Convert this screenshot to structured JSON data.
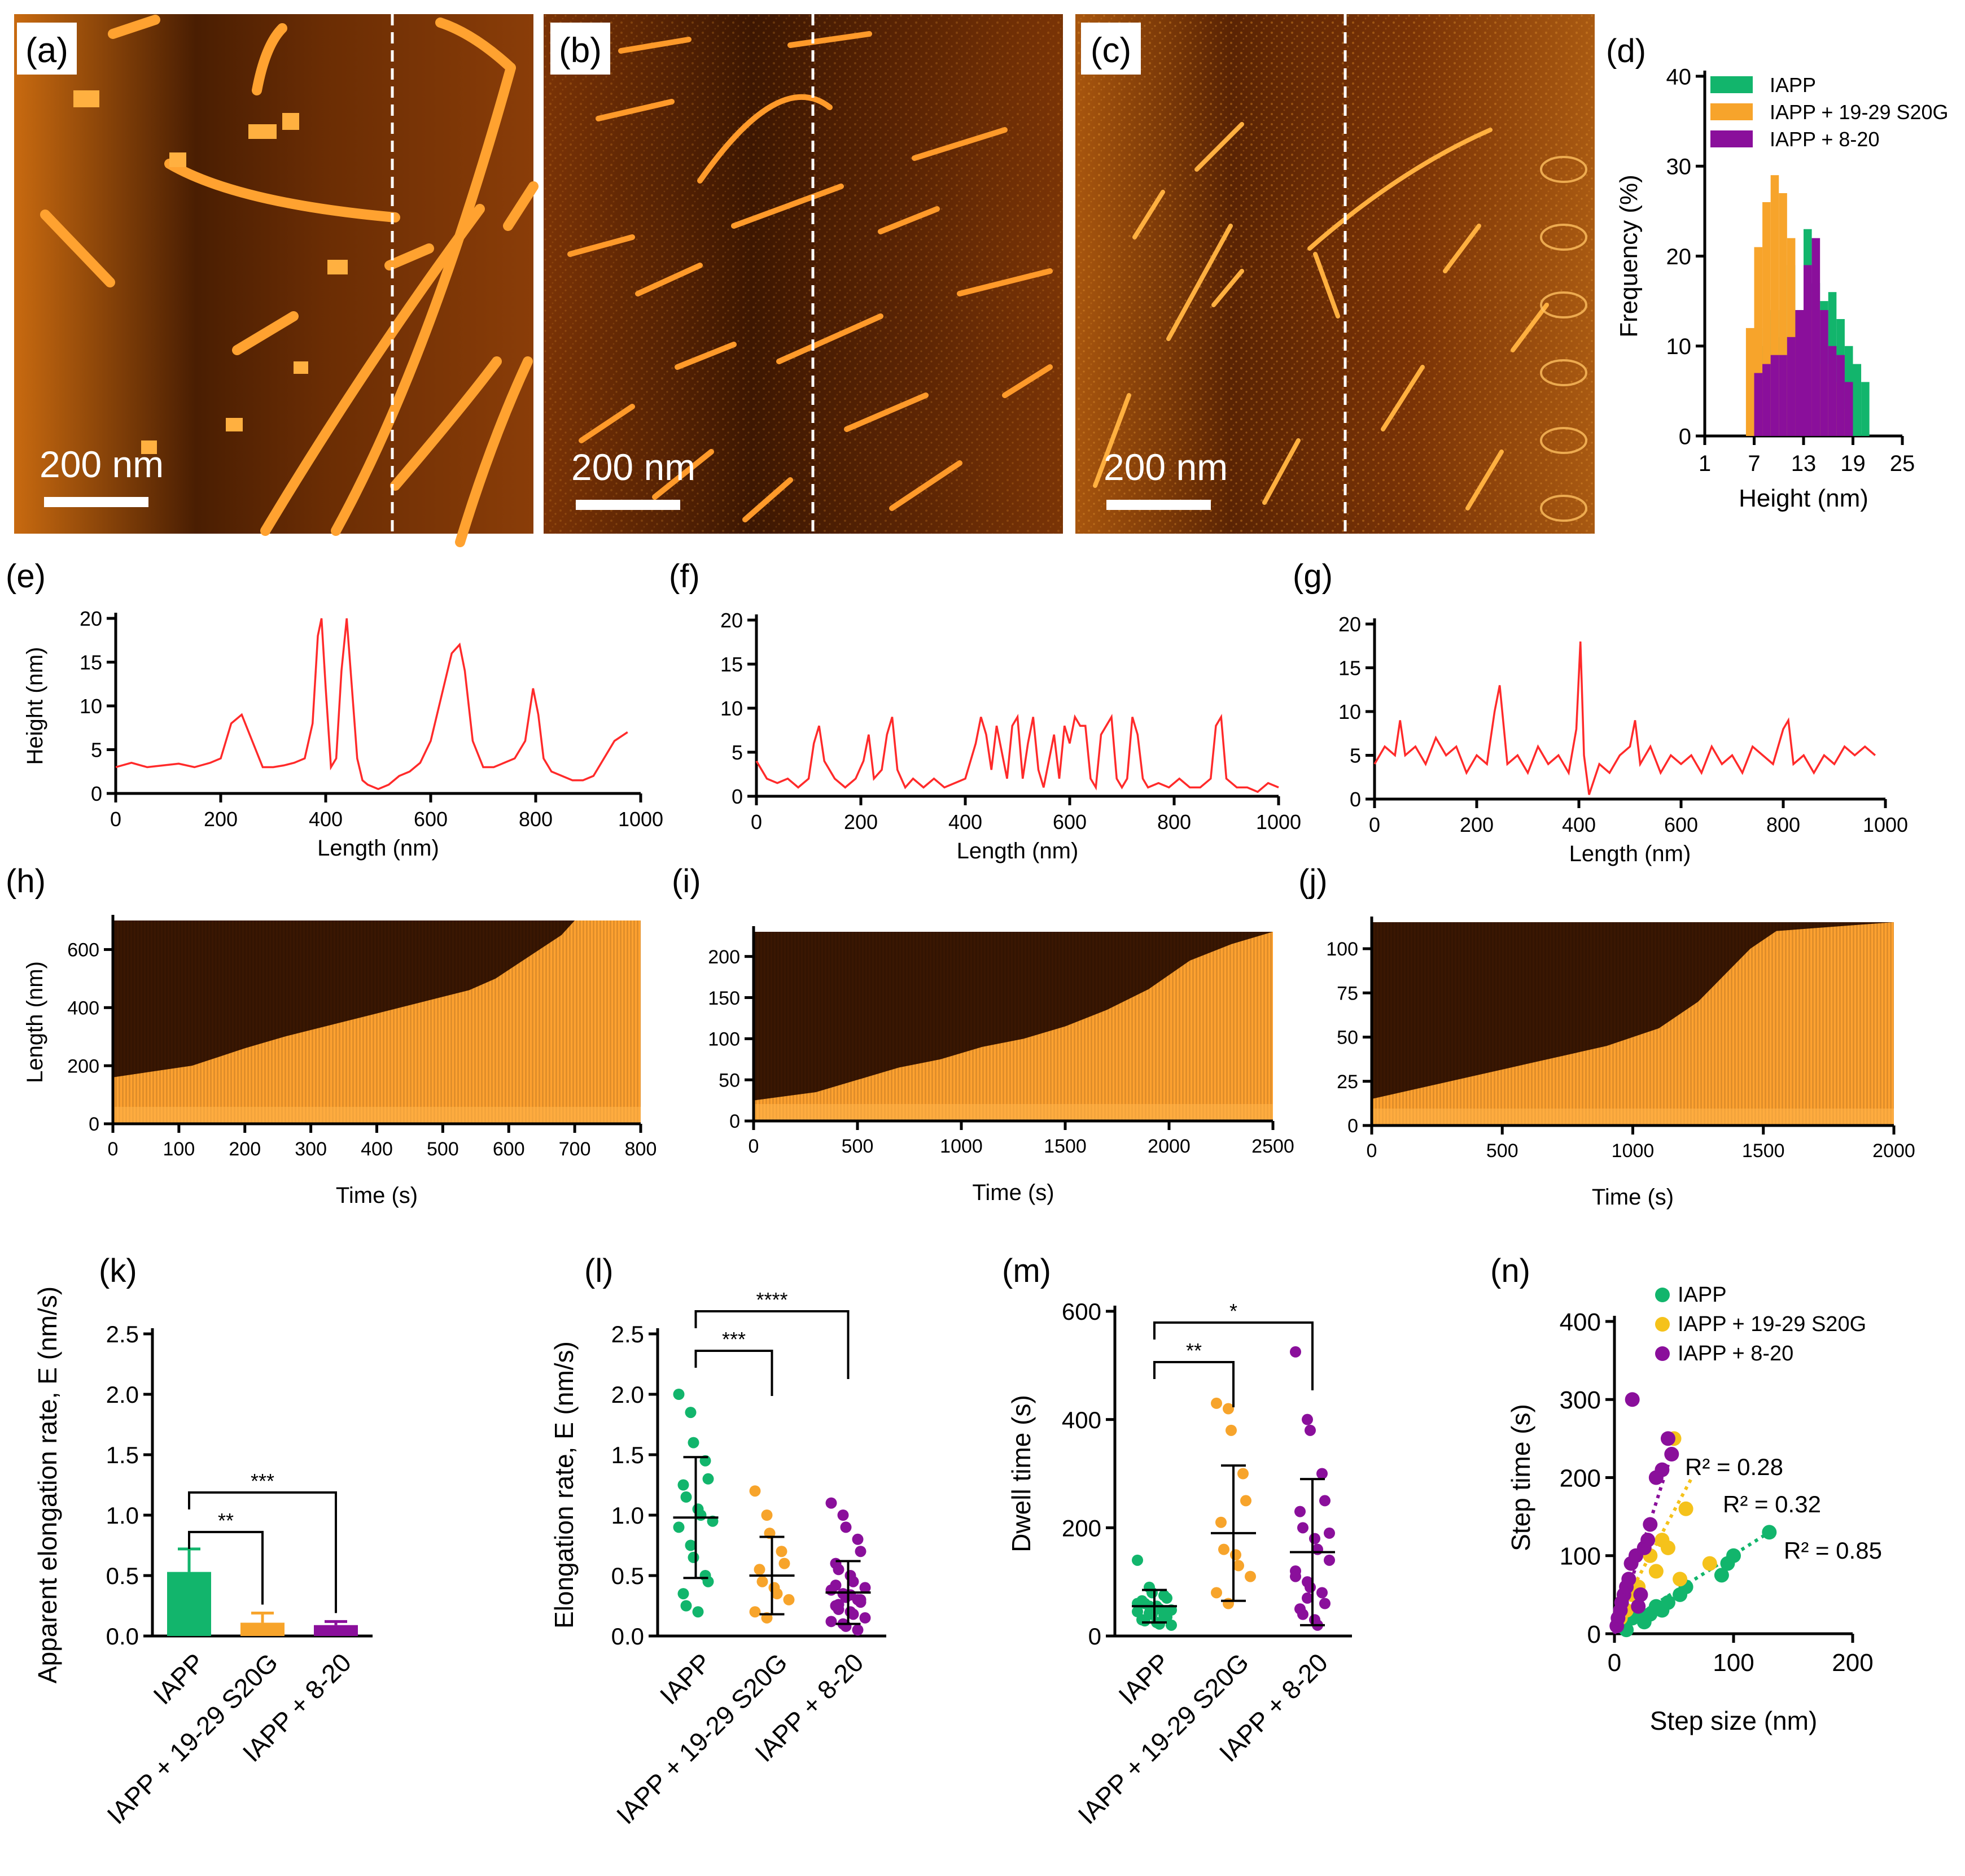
{
  "panel_labels": {
    "a": "(a)",
    "b": "(b)",
    "c": "(c)",
    "d": "(d)",
    "e": "(e)",
    "f": "(f)",
    "g": "(g)",
    "h": "(h)",
    "i": "(i)",
    "j": "(j)",
    "k": "(k)",
    "l": "(l)",
    "m": "(m)",
    "n": "(n)"
  },
  "scale_bar": "200 nm",
  "colors": {
    "iapp": "#12b56c",
    "s20g": "#f7a42b",
    "p820": "#8a0f9b",
    "s20g_n": "#f5c21b",
    "profile": "#ff2a2a",
    "afm_bright": "#ffa230",
    "afm_dark": "#3a1500",
    "axis": "#000000"
  },
  "chart_data": [
    {
      "id": "d",
      "type": "histogram",
      "title": "",
      "xlabel": "Height (nm)",
      "ylabel": "Frequency (%)",
      "xlim": [
        1,
        25
      ],
      "ylim": [
        0,
        40
      ],
      "xticks": [
        "1",
        "7",
        "13",
        "19",
        "25"
      ],
      "yticks": [
        "0",
        "10",
        "20",
        "30",
        "40"
      ],
      "legend": [
        "IAPP",
        "IAPP + 19-29 S20G",
        "IAPP + 8-20"
      ],
      "legend_position": "top-right",
      "bins": [
        6,
        7,
        8,
        9,
        10,
        11,
        12,
        13,
        14,
        15,
        16,
        17,
        18,
        19,
        20
      ],
      "series": [
        {
          "name": "IAPP",
          "values": [
            0,
            12,
            10,
            14,
            11,
            19,
            14,
            23,
            17,
            15,
            16,
            13,
            10,
            8,
            6
          ]
        },
        {
          "name": "IAPP + 19-29 S20G",
          "values": [
            12,
            21,
            26,
            29,
            27,
            22,
            12,
            16,
            14,
            8,
            6,
            3,
            0,
            0,
            0
          ]
        },
        {
          "name": "IAPP + 8-20",
          "values": [
            0,
            7,
            8,
            9,
            9,
            11,
            14,
            19,
            22,
            14,
            10,
            9,
            6,
            0,
            0
          ]
        }
      ]
    },
    {
      "id": "e",
      "type": "line",
      "xlabel": "Length (nm)",
      "ylabel": "Height (nm)",
      "xlim": [
        0,
        1000
      ],
      "ylim": [
        0,
        20
      ],
      "xticks": [
        "0",
        "200",
        "400",
        "600",
        "800",
        "1000"
      ],
      "yticks": [
        "0",
        "5",
        "10",
        "15",
        "20"
      ],
      "x": [
        0,
        30,
        60,
        90,
        120,
        150,
        180,
        200,
        220,
        240,
        260,
        280,
        300,
        320,
        340,
        360,
        375,
        385,
        392,
        400,
        410,
        420,
        430,
        440,
        450,
        460,
        470,
        480,
        500,
        520,
        540,
        560,
        580,
        600,
        620,
        640,
        655,
        665,
        680,
        700,
        720,
        740,
        760,
        780,
        795,
        805,
        815,
        830,
        850,
        870,
        890,
        910,
        930,
        950,
        975
      ],
      "y": [
        3,
        3.5,
        3,
        3.2,
        3.4,
        3,
        3.5,
        4,
        8,
        9,
        6,
        3,
        3,
        3.2,
        3.5,
        4,
        8,
        18,
        20,
        12,
        3,
        4,
        14,
        20,
        12,
        4,
        1.5,
        1,
        0.5,
        1,
        2,
        2.5,
        3.5,
        6,
        11,
        16,
        17,
        14,
        6,
        3,
        3,
        3.5,
        4,
        6,
        12,
        9,
        4,
        2.5,
        2,
        1.5,
        1.5,
        2,
        4,
        6,
        7
      ]
    },
    {
      "id": "f",
      "type": "line",
      "xlabel": "Length (nm)",
      "ylabel": "",
      "xlim": [
        0,
        1000
      ],
      "ylim": [
        0,
        20
      ],
      "xticks": [
        "0",
        "200",
        "400",
        "600",
        "800",
        "1000"
      ],
      "yticks": [
        "0",
        "5",
        "10",
        "15",
        "20"
      ],
      "x": [
        0,
        20,
        40,
        60,
        80,
        100,
        110,
        120,
        130,
        150,
        170,
        190,
        205,
        215,
        225,
        240,
        250,
        260,
        270,
        285,
        300,
        320,
        340,
        360,
        380,
        400,
        420,
        430,
        440,
        450,
        460,
        470,
        480,
        490,
        500,
        510,
        520,
        530,
        540,
        550,
        560,
        570,
        580,
        590,
        600,
        610,
        620,
        630,
        640,
        650,
        660,
        670,
        680,
        690,
        700,
        710,
        720,
        730,
        740,
        750,
        770,
        790,
        810,
        830,
        850,
        870,
        880,
        890,
        900,
        920,
        940,
        960,
        980,
        1000
      ],
      "y": [
        4,
        2,
        1.5,
        2,
        1,
        2,
        6,
        8,
        4,
        2,
        1,
        2,
        4,
        7,
        2,
        3,
        7,
        9,
        3,
        1,
        2,
        1,
        2,
        1,
        1.5,
        2,
        6,
        9,
        7,
        3,
        8,
        5,
        2,
        8,
        9,
        2,
        6,
        9,
        3,
        1,
        4,
        7,
        2,
        8,
        6,
        9,
        8,
        8,
        2,
        1,
        7,
        8,
        9,
        2,
        1,
        2,
        9,
        7,
        2,
        1,
        1.5,
        1,
        2,
        1,
        1,
        2,
        8,
        9,
        2,
        1,
        1,
        0.5,
        1.5,
        1
      ]
    },
    {
      "id": "g",
      "type": "line",
      "xlabel": "Length (nm)",
      "ylabel": "",
      "xlim": [
        0,
        1000
      ],
      "ylim": [
        0,
        20
      ],
      "xticks": [
        "0",
        "200",
        "400",
        "600",
        "800",
        "1000"
      ],
      "yticks": [
        "0",
        "5",
        "10",
        "15",
        "20"
      ],
      "x": [
        0,
        20,
        40,
        50,
        60,
        80,
        100,
        120,
        140,
        160,
        180,
        200,
        220,
        235,
        245,
        260,
        280,
        300,
        320,
        340,
        360,
        380,
        395,
        403,
        410,
        420,
        440,
        460,
        480,
        500,
        510,
        520,
        540,
        560,
        580,
        600,
        620,
        640,
        660,
        680,
        700,
        720,
        740,
        760,
        780,
        800,
        810,
        820,
        840,
        860,
        880,
        900,
        920,
        940,
        960,
        980
      ],
      "y": [
        4,
        6,
        5,
        9,
        5,
        6,
        4,
        7,
        5,
        6,
        3,
        5,
        4,
        10,
        13,
        4,
        5,
        3,
        6,
        4,
        5,
        3,
        8,
        18,
        5,
        0.5,
        4,
        3,
        5,
        6,
        9,
        4,
        6,
        3,
        5,
        4,
        5,
        3,
        6,
        4,
        5,
        3,
        6,
        5,
        4,
        8,
        9,
        4,
        5,
        3,
        5,
        4,
        6,
        5,
        6,
        5
      ]
    },
    {
      "id": "h",
      "type": "heatmap",
      "xlabel": "Time (s)",
      "ylabel": "Length (nm)",
      "xlim": [
        0,
        800
      ],
      "ylim": [
        0,
        700
      ],
      "xticks": [
        "0",
        "100",
        "200",
        "300",
        "400",
        "500",
        "600",
        "700",
        "800"
      ],
      "yticks": [
        "0",
        "200",
        "400",
        "600"
      ],
      "front_x": [
        0,
        60,
        120,
        200,
        260,
        330,
        400,
        470,
        540,
        580,
        620,
        680,
        700
      ],
      "front_y": [
        160,
        180,
        200,
        260,
        300,
        340,
        380,
        420,
        460,
        500,
        560,
        650,
        700
      ]
    },
    {
      "id": "i",
      "type": "heatmap",
      "xlabel": "Time (s)",
      "ylabel": "",
      "xlim": [
        0,
        2500
      ],
      "ylim": [
        0,
        230
      ],
      "xticks": [
        "0",
        "500",
        "1000",
        "1500",
        "2000",
        "2500"
      ],
      "yticks": [
        "0",
        "50",
        "100",
        "150",
        "200"
      ],
      "front_x": [
        0,
        300,
        500,
        700,
        900,
        1100,
        1300,
        1500,
        1700,
        1900,
        2100,
        2300,
        2500
      ],
      "front_y": [
        25,
        35,
        50,
        65,
        75,
        90,
        100,
        115,
        135,
        160,
        195,
        215,
        230
      ]
    },
    {
      "id": "j",
      "type": "heatmap",
      "xlabel": "Time (s)",
      "ylabel": "",
      "xlim": [
        0,
        2000
      ],
      "ylim": [
        0,
        115
      ],
      "xticks": [
        "0",
        "500",
        "1000",
        "1500",
        "2000"
      ],
      "yticks": [
        "0",
        "25",
        "50",
        "75",
        "100"
      ],
      "front_x": [
        0,
        300,
        600,
        900,
        1100,
        1250,
        1350,
        1450,
        1550,
        2000
      ],
      "front_y": [
        15,
        25,
        35,
        45,
        55,
        70,
        85,
        100,
        110,
        115
      ]
    },
    {
      "id": "k",
      "type": "bar",
      "ylabel": "Apparent elongation rate,  E (nm/s)",
      "ylim": [
        0,
        2.5
      ],
      "yticks": [
        "0.0",
        "0.5",
        "1.0",
        "1.5",
        "2.0",
        "2.5"
      ],
      "categories": [
        "IAPP",
        "IAPP + 19-29 S20G",
        "IAPP + 8-20"
      ],
      "values": [
        0.53,
        0.11,
        0.09
      ],
      "errors": [
        0.19,
        0.08,
        0.03
      ],
      "significance": [
        {
          "from": 0,
          "to": 1,
          "label": "**"
        },
        {
          "from": 0,
          "to": 2,
          "label": "***"
        }
      ]
    },
    {
      "id": "l",
      "type": "scatter",
      "ylabel": "Elongation rate,  E (nm/s)",
      "ylim": [
        0,
        2.5
      ],
      "yticks": [
        "0.0",
        "0.5",
        "1.0",
        "1.5",
        "2.0",
        "2.5"
      ],
      "categories": [
        "IAPP",
        "IAPP + 19-29 S20G",
        "IAPP + 8-20"
      ],
      "means": [
        0.98,
        0.5,
        0.36
      ],
      "sds": [
        0.5,
        0.32,
        0.26
      ],
      "points": [
        [
          2.0,
          1.85,
          1.6,
          1.45,
          1.3,
          1.25,
          1.15,
          1.05,
          1.0,
          0.95,
          0.9,
          0.75,
          0.65,
          0.5,
          0.45,
          0.35,
          0.25,
          0.2
        ],
        [
          1.2,
          1.0,
          0.85,
          0.7,
          0.6,
          0.55,
          0.45,
          0.4,
          0.35,
          0.3,
          0.2,
          0.15
        ],
        [
          1.1,
          1.0,
          0.9,
          0.8,
          0.7,
          0.6,
          0.55,
          0.5,
          0.45,
          0.4,
          0.38,
          0.35,
          0.32,
          0.3,
          0.28,
          0.25,
          0.22,
          0.2,
          0.18,
          0.15,
          0.12,
          0.1,
          0.08,
          0.05,
          0.3,
          0.42,
          0.26,
          0.34
        ]
      ],
      "significance": [
        {
          "from": 0,
          "to": 1,
          "label": "***"
        },
        {
          "from": 0,
          "to": 2,
          "label": "****"
        }
      ]
    },
    {
      "id": "m",
      "type": "scatter",
      "ylabel": "Dwell time (s)",
      "ylim": [
        0,
        600
      ],
      "yticks": [
        "0",
        "200",
        "400",
        "600"
      ],
      "categories": [
        "IAPP",
        "IAPP + 19-29 S20G",
        "IAPP + 8-20"
      ],
      "means": [
        55,
        190,
        155
      ],
      "sds": [
        30,
        125,
        135
      ],
      "points": [
        [
          140,
          90,
          80,
          75,
          70,
          65,
          60,
          55,
          50,
          48,
          45,
          42,
          40,
          38,
          35,
          30,
          28,
          25,
          22,
          20,
          60,
          55,
          50,
          45
        ],
        [
          430,
          420,
          380,
          300,
          250,
          210,
          160,
          150,
          130,
          110,
          80,
          60
        ],
        [
          525,
          400,
          380,
          300,
          250,
          230,
          200,
          180,
          160,
          140,
          120,
          100,
          90,
          80,
          60,
          50,
          40,
          30,
          20,
          190,
          110,
          70
        ]
      ],
      "significance": [
        {
          "from": 0,
          "to": 1,
          "label": "**"
        },
        {
          "from": 0,
          "to": 2,
          "label": "*"
        }
      ]
    },
    {
      "id": "n",
      "type": "scatter",
      "xlabel": "Step size (nm)",
      "ylabel": "Step time (s)",
      "xlim": [
        0,
        200
      ],
      "ylim": [
        0,
        400
      ],
      "xticks": [
        "0",
        "100",
        "200"
      ],
      "yticks": [
        "0",
        "100",
        "200",
        "300",
        "400"
      ],
      "legend": [
        "IAPP",
        "IAPP + 19-29 S20G",
        "IAPP + 8-20"
      ],
      "legend_position": "top-left",
      "annotations": [
        "R² = 0.28",
        "R² = 0.32",
        "R² = 0.85"
      ],
      "series": [
        {
          "name": "IAPP",
          "x": [
            5,
            10,
            15,
            20,
            25,
            30,
            35,
            40,
            45,
            55,
            60,
            90,
            95,
            100,
            130
          ],
          "y": [
            10,
            5,
            20,
            30,
            15,
            25,
            35,
            30,
            40,
            50,
            60,
            75,
            90,
            100,
            130
          ],
          "fit": [
            [
              0,
              5
            ],
            [
              130,
              130
            ]
          ]
        },
        {
          "name": "IAPP + 19-29 S20G",
          "x": [
            5,
            10,
            15,
            20,
            30,
            35,
            40,
            45,
            50,
            55,
            60,
            80
          ],
          "y": [
            20,
            30,
            50,
            60,
            100,
            80,
            120,
            110,
            250,
            70,
            160,
            90
          ],
          "fit": [
            [
              0,
              15
            ],
            [
              65,
              200
            ]
          ]
        },
        {
          "name": "IAPP + 8-20",
          "x": [
            2,
            3,
            5,
            6,
            8,
            10,
            12,
            14,
            15,
            18,
            20,
            22,
            25,
            28,
            30,
            35,
            40,
            45,
            48
          ],
          "y": [
            10,
            20,
            30,
            40,
            50,
            60,
            70,
            90,
            300,
            100,
            35,
            50,
            110,
            120,
            140,
            200,
            210,
            250,
            230
          ],
          "fit": [
            [
              0,
              0
            ],
            [
              50,
              240
            ]
          ]
        }
      ]
    }
  ]
}
